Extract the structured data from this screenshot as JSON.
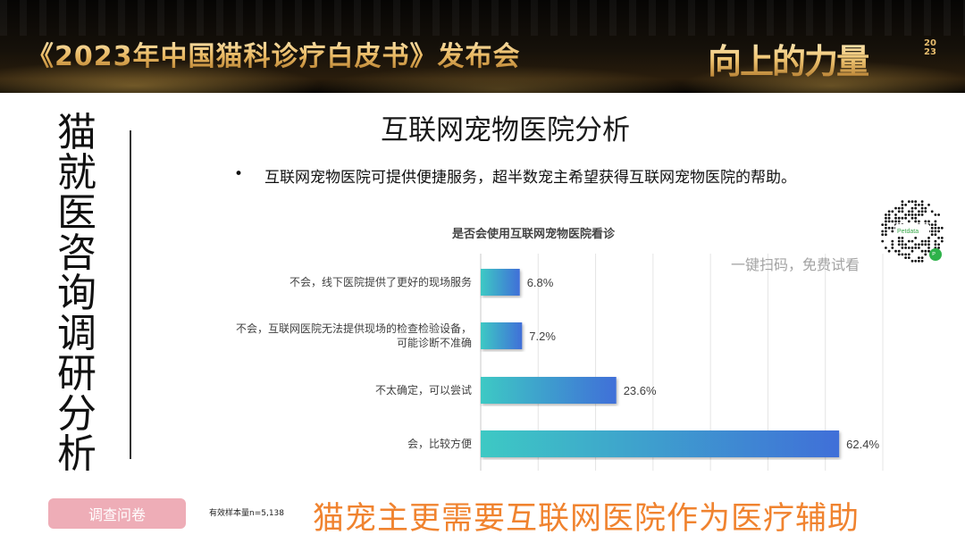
{
  "header": {
    "title": "《2023年中国猫科诊疗白皮书》发布会",
    "slogan": "向上的力量",
    "year": "2023"
  },
  "sidebar": {
    "vertical_title": "猫就医 咨询调研分析",
    "survey_button": "调查问卷",
    "sample_size": "有效样本量n=5,138"
  },
  "main": {
    "title": "互联网宠物医院分析",
    "bullet": "•",
    "subtitle": "互联网宠物医院可提供便捷服务，超半数宠主希望获得互联网宠物医院的帮助。",
    "qr_caption": "一键扫码，免费试看",
    "qr_brand": "Petdata",
    "conclusion": "猫宠主更需要互联网医院作为医疗辅助"
  },
  "chart_data": {
    "type": "bar",
    "orientation": "horizontal",
    "title": "是否会使用互联网宠物医院看诊",
    "categories": [
      "不会，线下医院提供了更好的现场服务",
      "不会，互联网医院无法提供现场的检查检验设备，\n可能诊断不准确",
      "不太确定，可以尝试",
      "会，比较方便"
    ],
    "values": [
      6.8,
      7.2,
      23.6,
      62.4
    ],
    "value_labels": [
      "6.8%",
      "7.2%",
      "23.6%",
      "62.4%"
    ],
    "xlim": [
      0,
      70
    ],
    "unit": "%",
    "grid": true,
    "bar_gradient": [
      "#3ec9c4",
      "#3f6fd8"
    ]
  }
}
